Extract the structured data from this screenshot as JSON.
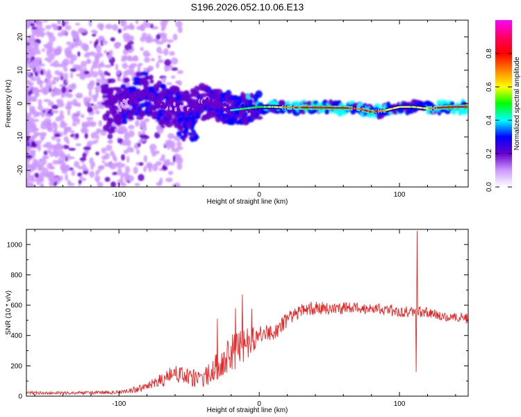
{
  "figure_title": "S196.2026.052.10.06.E13",
  "chart_data": [
    {
      "type": "heatmap",
      "title": "S196.2026.052.10.06.E13",
      "xlabel": "Height of straight line (km)",
      "ylabel": "Frequency (Hz)",
      "xlim": [
        -166,
        149
      ],
      "ylim": [
        -25,
        25
      ],
      "xticks": [
        -100,
        0,
        100
      ],
      "yticks": [
        -20,
        -10,
        0,
        10,
        20
      ],
      "colorbar": {
        "label": "Normalized spectral amplitude",
        "range": [
          0,
          1
        ],
        "ticks": [
          0.0,
          0.2,
          0.4,
          0.6,
          0.8
        ],
        "tick_labels": [
          "0.0",
          "0.2",
          "0.4",
          "0.6",
          "0.8"
        ],
        "colors": [
          "#ffffff",
          "#cc99ff",
          "#6600cc",
          "#0000ff",
          "#00ffff",
          "#00ff00",
          "#ffff00",
          "#ff8000",
          "#ff0000",
          "#ff0066",
          "#ff00ff"
        ]
      },
      "ridge": {
        "x": [
          -100,
          -90,
          -80,
          -70,
          -60,
          -50,
          -40,
          -30,
          -20,
          -10,
          0,
          10,
          20,
          40,
          60,
          70,
          80,
          90,
          100,
          110,
          120,
          130,
          140,
          148
        ],
        "freq": [
          -1.5,
          2.5,
          3,
          0,
          -1,
          -2,
          0.5,
          0,
          -2,
          -1.5,
          -1,
          -1,
          -1.2,
          -1.2,
          -1.3,
          -1.5,
          -2.5,
          -2,
          -1,
          -1,
          -1.5,
          -1.2,
          -1,
          -1
        ],
        "amplitude": [
          0.25,
          0.35,
          0.4,
          0.4,
          0.3,
          0.35,
          0.35,
          0.4,
          0.45,
          0.5,
          0.55,
          0.6,
          0.75,
          0.95,
          0.9,
          0.8,
          0.85,
          0.7,
          0.65,
          0.6,
          0.7,
          0.85,
          0.9,
          0.9
        ]
      },
      "noise_note": "Scattered low-amplitude blobs (purple) for x < -80, thinning toward -60"
    },
    {
      "type": "line",
      "xlabel": "Height of straight line (km)",
      "ylabel": "SNR (10 * v/v)",
      "xlim": [
        -166,
        149
      ],
      "ylim": [
        0,
        1100
      ],
      "xticks": [
        -100,
        0,
        100
      ],
      "yticks": [
        0,
        200,
        400,
        600,
        800,
        1000
      ],
      "color": "#ee2222",
      "envelope": {
        "x": [
          -166,
          -140,
          -120,
          -100,
          -90,
          -80,
          -70,
          -60,
          -50,
          -40,
          -30,
          -20,
          -10,
          0,
          10,
          20,
          30,
          40,
          60,
          80,
          100,
          110,
          120,
          130,
          140,
          149
        ],
        "mean": [
          22,
          20,
          22,
          25,
          40,
          60,
          100,
          150,
          120,
          110,
          200,
          270,
          350,
          400,
          420,
          500,
          570,
          580,
          580,
          580,
          560,
          560,
          550,
          530,
          520,
          510
        ],
        "noise": [
          10,
          10,
          12,
          12,
          20,
          30,
          50,
          60,
          60,
          60,
          90,
          130,
          120,
          60,
          60,
          50,
          45,
          45,
          40,
          35,
          40,
          40,
          35,
          35,
          35,
          35
        ]
      },
      "spikes": [
        {
          "x": 112.5,
          "y": 1090
        },
        {
          "x": 112,
          "y": 160
        },
        {
          "x": -30,
          "y": 510
        },
        {
          "x": -17,
          "y": 580
        },
        {
          "x": -12,
          "y": 670
        }
      ]
    }
  ]
}
